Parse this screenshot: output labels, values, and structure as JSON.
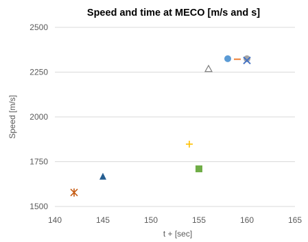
{
  "chart_data": {
    "type": "scatter",
    "title": "Speed and time at MECO [m/s and s]",
    "xlabel": "t + [sec]",
    "ylabel": "Speed [m/s]",
    "xlim": [
      140,
      165
    ],
    "ylim": [
      1500,
      2500
    ],
    "x_ticks": [
      "140",
      "145",
      "150",
      "155",
      "160",
      "165"
    ],
    "y_ticks": [
      "1500",
      "1750",
      "2000",
      "2250",
      "2500"
    ],
    "grid": "horizontal",
    "points": [
      {
        "x": 142,
        "y": 1578,
        "marker": "asterisk",
        "color": "#c55a11"
      },
      {
        "x": 145,
        "y": 1665,
        "marker": "triangle",
        "color": "#255e91"
      },
      {
        "x": 154,
        "y": 1848,
        "marker": "plus",
        "color": "#ffc000"
      },
      {
        "x": 155,
        "y": 1710,
        "marker": "square",
        "color": "#70ad47"
      },
      {
        "x": 156,
        "y": 2268,
        "marker": "triangle-open",
        "color": "#7f7f7f"
      },
      {
        "x": 158,
        "y": 2325,
        "marker": "circle",
        "color": "#5b9bd5"
      },
      {
        "x": 159,
        "y": 2322,
        "marker": "dash",
        "color": "#ed7d31"
      },
      {
        "x": 160,
        "y": 2325,
        "marker": "circle",
        "color": "#a5a5a5"
      },
      {
        "x": 160,
        "y": 2315,
        "marker": "x",
        "color": "#4472c4"
      }
    ]
  }
}
